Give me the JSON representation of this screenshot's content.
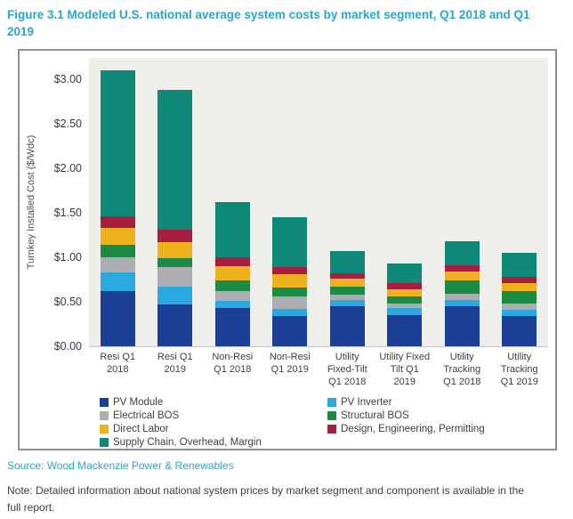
{
  "figure_title": "Figure 3.1 Modeled U.S. national average system costs by market segment, Q1 2018 and Q1 2019",
  "source_line": "Source: Wood Mackenzie Power & Renewables",
  "note_line": "Note: Detailed information about national system prices by market segment and component is available in the full report.",
  "colors": {
    "title_teal": "#2AA7CB",
    "axis_text": "#343A44",
    "label_text": "#404040",
    "plot_background": "#EFEEEB",
    "frame_border": "#8F8F8F"
  },
  "chart_data": {
    "type": "bar",
    "stacked": true,
    "title": "Figure 3.1 Modeled U.S. national average system costs by market segment, Q1 2018 and Q1 2019",
    "xlabel": "",
    "ylabel": "Turnkey Installed Cost ($/Wdc)",
    "ylim": [
      0,
      3.24
    ],
    "grid": false,
    "legend_position": "bottom",
    "yticks": [
      {
        "label": "$0.00",
        "value": 0
      },
      {
        "label": "$0.50",
        "value": 0.5
      },
      {
        "label": "$1.00",
        "value": 1.0
      },
      {
        "label": "$1.50",
        "value": 1.5
      },
      {
        "label": "$2.00",
        "value": 2.0
      },
      {
        "label": "$2.50",
        "value": 2.5
      },
      {
        "label": "$3.00",
        "value": 3.0
      }
    ],
    "categories": [
      "Resi Q1\n2018",
      "Resi Q1\n2019",
      "Non-Resi\nQ1 2018",
      "Non-Resi\nQ1 2019",
      "Utility\nFixed-Tilt\nQ1 2018",
      "Utility Fixed\nTilt Q1\n2019",
      "Utility\nTracking\nQ1 2018",
      "Utility\nTracking\nQ1 2019"
    ],
    "series": [
      {
        "name": "PV Module",
        "color": "#1B3F94",
        "values": [
          0.62,
          0.47,
          0.43,
          0.34,
          0.45,
          0.35,
          0.45,
          0.34
        ]
      },
      {
        "name": "PV Inverter",
        "color": "#29A9E0",
        "values": [
          0.21,
          0.2,
          0.08,
          0.08,
          0.07,
          0.08,
          0.07,
          0.07
        ]
      },
      {
        "name": "Electrical BOS",
        "color": "#ABADB0",
        "values": [
          0.17,
          0.22,
          0.11,
          0.14,
          0.06,
          0.05,
          0.07,
          0.07
        ]
      },
      {
        "name": "Structural BOS",
        "color": "#1A8A44",
        "values": [
          0.14,
          0.1,
          0.12,
          0.1,
          0.09,
          0.08,
          0.15,
          0.14
        ]
      },
      {
        "name": "Direct Labor",
        "color": "#EDB11E",
        "values": [
          0.19,
          0.18,
          0.16,
          0.15,
          0.09,
          0.08,
          0.1,
          0.09
        ]
      },
      {
        "name": "Design, Engineering, Permitting",
        "color": "#A81E40",
        "values": [
          0.13,
          0.14,
          0.1,
          0.08,
          0.06,
          0.07,
          0.07,
          0.07
        ]
      },
      {
        "name": "Supply Chain, Overhead, Margin",
        "color": "#0F8977",
        "values": [
          1.64,
          1.57,
          0.62,
          0.56,
          0.25,
          0.22,
          0.27,
          0.27
        ]
      }
    ],
    "totals": [
      3.1,
      2.88,
      1.62,
      1.45,
      1.07,
      0.93,
      1.18,
      1.05
    ]
  }
}
